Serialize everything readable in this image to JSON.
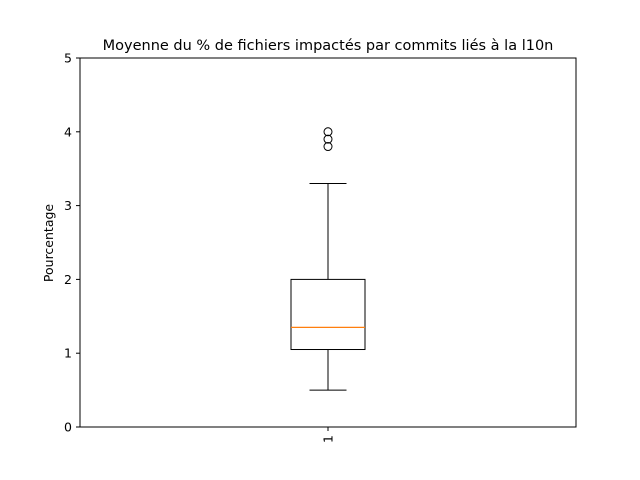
{
  "chart_data": {
    "type": "boxplot",
    "title": "Moyenne du % de fichiers impactés par commits liés à la l10n",
    "xlabel": "",
    "ylabel": "Pourcentage",
    "ylim": [
      0,
      5
    ],
    "yticks": [
      0,
      1,
      2,
      3,
      4,
      5
    ],
    "categories": [
      "1"
    ],
    "x_tick_rotation": "vertical",
    "grid": false,
    "boxes": [
      {
        "category": "1",
        "whisker_low": 0.5,
        "q1": 1.05,
        "median": 1.35,
        "q3": 2.0,
        "whisker_high": 3.3,
        "outliers": [
          3.8,
          3.9,
          4.0
        ]
      }
    ],
    "colors": {
      "box": "#000000",
      "median": "#ff7f0e",
      "outlier": "#000000"
    }
  }
}
